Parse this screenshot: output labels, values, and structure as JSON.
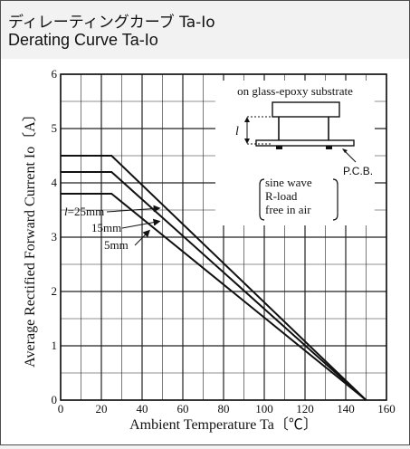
{
  "header": {
    "title_jp": "ディレーティングカーブ Ta-Io",
    "title_en": "Derating Curve Ta-Io"
  },
  "chart_data": {
    "type": "line",
    "title": "Derating Curve Ta-Io",
    "xlabel": "Ambient Temperature Ta〔℃〕",
    "ylabel": "Average Rectified Forward Current Io〔A〕",
    "xlim": [
      0,
      160
    ],
    "ylim": [
      0,
      6
    ],
    "x_ticks": [
      0,
      20,
      40,
      60,
      80,
      100,
      120,
      140,
      160
    ],
    "y_ticks": [
      0,
      1,
      2,
      3,
      4,
      5,
      6
    ],
    "x_tick_labels": [
      "0",
      "20",
      "40",
      "60",
      "80",
      "100",
      "120",
      "140",
      "160"
    ],
    "y_tick_labels": [
      "0",
      "1",
      "2",
      "3",
      "4",
      "5",
      "6"
    ],
    "grid": true,
    "series": [
      {
        "name": "l=25mm",
        "x": [
          0,
          25,
          150
        ],
        "y": [
          4.5,
          4.5,
          0
        ]
      },
      {
        "name": "15mm",
        "x": [
          0,
          25,
          150
        ],
        "y": [
          4.2,
          4.2,
          0
        ]
      },
      {
        "name": "5mm",
        "x": [
          0,
          25,
          150
        ],
        "y": [
          3.8,
          3.8,
          0
        ]
      }
    ],
    "series_labels": [
      "l=25mm",
      "15mm",
      "5mm"
    ],
    "annotations": {
      "mount": "on glass-epoxy substrate",
      "dimension": "l",
      "pcb": "P.C.B.",
      "conditions": [
        "sine wave",
        "R-load",
        "free in air"
      ]
    }
  }
}
